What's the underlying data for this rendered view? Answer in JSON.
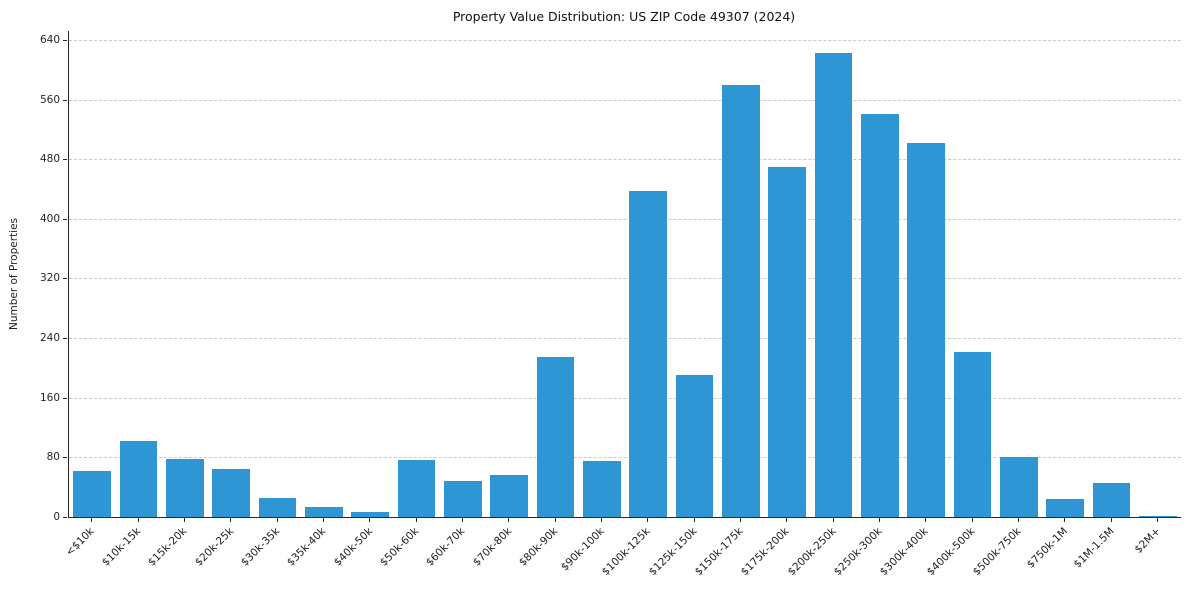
{
  "chart": {
    "title": "Property Value Distribution: US ZIP Code 49307 (2024)",
    "ylabel": "Number of Properties"
  },
  "chart_data": {
    "type": "bar",
    "title": "Property Value Distribution: US ZIP Code 49307 (2024)",
    "xlabel": "",
    "ylabel": "Number of Properties",
    "ylim": [
      0,
      652
    ],
    "yticks": [
      0,
      80,
      160,
      240,
      320,
      400,
      480,
      560,
      640
    ],
    "grid": "horizontal-dashed",
    "legend": "none",
    "bar_color": "#2e96d4",
    "categories": [
      "<$10k",
      "$10k-15k",
      "$15k-20k",
      "$20k-25k",
      "$30k-35k",
      "$35k-40k",
      "$40k-50k",
      "$50k-60k",
      "$60k-70k",
      "$70k-80k",
      "$80k-90k",
      "$90k-100k",
      "$100k-125k",
      "$125k-150k",
      "$150k-175k",
      "$175k-200k",
      "$200k-250k",
      "$250k-300k",
      "$300k-400k",
      "$400k-500k",
      "$500k-750k",
      "$750k-1M",
      "$1M-1.5M",
      "$2M+"
    ],
    "values": [
      62,
      102,
      78,
      64,
      26,
      13,
      7,
      77,
      48,
      56,
      215,
      75,
      437,
      190,
      580,
      470,
      623,
      541,
      502,
      222,
      80,
      24,
      46,
      2
    ]
  }
}
